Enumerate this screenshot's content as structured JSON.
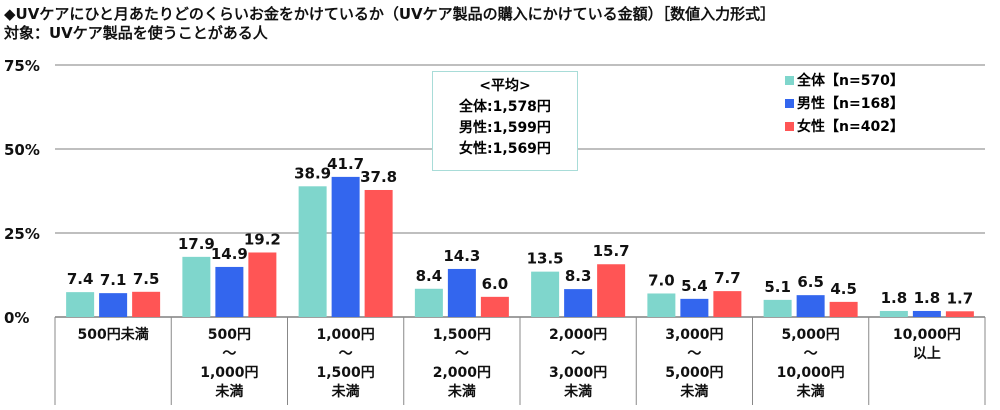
{
  "title": "◆UVケアにひと月あたりどのくらいお金をかけているか（UVケア製品の購入にかけている金額）［数値入力形式］",
  "subtitle": "対象：UVケア製品を使うことがある人",
  "average_box": {
    "heading": "<平均>",
    "lines": [
      "全体:1,578円",
      "男性:1,599円",
      "女性:1,569円"
    ]
  },
  "colors": {
    "all": "#7fd6cc",
    "male": "#3366ee",
    "female": "#ff5555",
    "grid": "#999999"
  },
  "chart_data": {
    "type": "bar",
    "title": "UVケアにひと月あたりどのくらいお金をかけているか",
    "ylabel": "",
    "ylim": [
      0,
      75
    ],
    "yticks": [
      "0%",
      "25%",
      "50%",
      "75%"
    ],
    "ytick_values": [
      0,
      25,
      50,
      75
    ],
    "grid": true,
    "legend_position": "top-right",
    "categories": [
      [
        "500円未満"
      ],
      [
        "500円",
        "～",
        "1,000円",
        "未満"
      ],
      [
        "1,000円",
        "～",
        "1,500円",
        "未満"
      ],
      [
        "1,500円",
        "～",
        "2,000円",
        "未満"
      ],
      [
        "2,000円",
        "～",
        "3,000円",
        "未満"
      ],
      [
        "3,000円",
        "～",
        "5,000円",
        "未満"
      ],
      [
        "5,000円",
        "～",
        "10,000円",
        "未満"
      ],
      [
        "10,000円",
        "以上"
      ]
    ],
    "series": [
      {
        "name": "全体【n=570】",
        "key": "all",
        "values": [
          7.4,
          17.9,
          38.9,
          8.4,
          13.5,
          7.0,
          5.1,
          1.8
        ]
      },
      {
        "name": "男性【n=168】",
        "key": "male",
        "values": [
          7.1,
          14.9,
          41.7,
          14.3,
          8.3,
          5.4,
          6.5,
          1.8
        ]
      },
      {
        "name": "女性【n=402】",
        "key": "female",
        "values": [
          7.5,
          19.2,
          37.8,
          6.0,
          15.7,
          7.7,
          4.5,
          1.7
        ]
      }
    ]
  }
}
